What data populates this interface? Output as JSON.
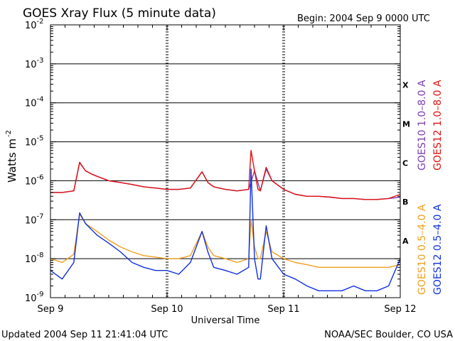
{
  "chart_data": {
    "type": "line",
    "title": "GOES Xray Flux (5 minute data)",
    "begin": "Begin:  2004 Sep 9 0000 UTC",
    "xlabel": "Universal Time",
    "ylabel": "Watts m",
    "ylabel_exp": "-2",
    "x_ticks": [
      "Sep 9",
      "Sep 10",
      "Sep 11",
      "Sep 12"
    ],
    "xlim_days": [
      0,
      3
    ],
    "y_scale": "log",
    "ylim": [
      1e-09,
      0.01
    ],
    "y_tick_exponents": [
      "-2",
      "-3",
      "-4",
      "-5",
      "-6",
      "-7",
      "-8",
      "-9"
    ],
    "flare_classes": [
      {
        "label": "X",
        "flux": 0.0003
      },
      {
        "label": "M",
        "flux": 3e-05
      },
      {
        "label": "C",
        "flux": 3e-06
      },
      {
        "label": "B",
        "flux": 3e-07
      },
      {
        "label": "A",
        "flux": 3e-08
      }
    ],
    "grid": "horizontal at decades, dotted vertical at day boundaries",
    "series": [
      {
        "name": "GOES10 1.0–8.0 A",
        "color": "#7a3fb0",
        "x": [
          0,
          0.1,
          0.2,
          0.25,
          0.3,
          0.35,
          0.4,
          0.5,
          0.6,
          0.7,
          0.8,
          0.9,
          1.0,
          1.1,
          1.2,
          1.3,
          1.35,
          1.4,
          1.5,
          1.6,
          1.7,
          1.75,
          1.8,
          1.85,
          1.9,
          2.0,
          2.1,
          2.2,
          2.3,
          2.4,
          2.5,
          2.6,
          2.7,
          2.8,
          2.9,
          3.0
        ],
        "y": [
          5e-07,
          5e-07,
          5.5e-07,
          2.9e-06,
          1.8e-06,
          1.5e-06,
          1.3e-06,
          1e-06,
          9e-07,
          8e-07,
          7e-07,
          6.5e-07,
          6e-07,
          6e-07,
          6.5e-07,
          1.7e-06,
          9e-07,
          7e-07,
          6e-07,
          5.5e-07,
          6e-07,
          1.8e-06,
          5.5e-07,
          2e-06,
          1e-06,
          6e-07,
          4.5e-07,
          4e-07,
          4e-07,
          3.8e-07,
          3.5e-07,
          3.5e-07,
          3.3e-07,
          3.3e-07,
          3.5e-07,
          3.8e-07
        ]
      },
      {
        "name": "GOES12 1.0–8.0 A",
        "color": "#e01010",
        "x": [
          0,
          0.1,
          0.2,
          0.25,
          0.3,
          0.35,
          0.4,
          0.5,
          0.6,
          0.7,
          0.8,
          0.9,
          1.0,
          1.1,
          1.2,
          1.3,
          1.35,
          1.4,
          1.5,
          1.6,
          1.7,
          1.72,
          1.75,
          1.78,
          1.8,
          1.85,
          1.9,
          2.0,
          2.1,
          2.2,
          2.3,
          2.4,
          2.5,
          2.6,
          2.7,
          2.8,
          2.9,
          3.0
        ],
        "y": [
          5e-07,
          5e-07,
          5.5e-07,
          3e-06,
          1.8e-06,
          1.5e-06,
          1.3e-06,
          1e-06,
          9e-07,
          8e-07,
          7e-07,
          6.5e-07,
          6e-07,
          6e-07,
          6.5e-07,
          1.7e-06,
          9e-07,
          7e-07,
          6e-07,
          5.5e-07,
          6e-07,
          6e-06,
          1.8e-06,
          6e-07,
          5.5e-07,
          2.2e-06,
          1e-06,
          6e-07,
          4.5e-07,
          4e-07,
          4e-07,
          3.8e-07,
          3.5e-07,
          3.5e-07,
          3.3e-07,
          3.3e-07,
          3.5e-07,
          4.5e-07
        ]
      },
      {
        "name": "GOES10 0.5–4.0 A",
        "color": "#f0a020",
        "x": [
          0,
          0.1,
          0.2,
          0.25,
          0.3,
          0.4,
          0.5,
          0.6,
          0.7,
          0.8,
          0.9,
          1.0,
          1.1,
          1.2,
          1.3,
          1.35,
          1.4,
          1.5,
          1.6,
          1.7,
          1.72,
          1.75,
          1.78,
          1.8,
          1.85,
          1.9,
          2.0,
          2.1,
          2.2,
          2.3,
          2.4,
          2.5,
          2.6,
          2.7,
          2.8,
          2.9,
          3.0
        ],
        "y": [
          1e-08,
          8e-09,
          1.3e-08,
          1.4e-07,
          8e-08,
          5e-08,
          3e-08,
          2e-08,
          1.5e-08,
          1.2e-08,
          1.1e-08,
          1e-08,
          1e-08,
          1.2e-08,
          5e-08,
          2e-08,
          1.2e-08,
          1e-08,
          8e-09,
          1e-08,
          1e-07,
          2e-08,
          1e-08,
          1e-08,
          5e-08,
          1.5e-08,
          1e-08,
          8e-09,
          7e-09,
          6e-09,
          6e-09,
          6e-09,
          6e-09,
          6e-09,
          6e-09,
          6e-09,
          7e-09
        ]
      },
      {
        "name": "GOES12 0.5–4.0 A",
        "color": "#1030e0",
        "x": [
          0,
          0.1,
          0.2,
          0.25,
          0.3,
          0.4,
          0.5,
          0.6,
          0.7,
          0.8,
          0.9,
          1.0,
          1.1,
          1.2,
          1.3,
          1.35,
          1.4,
          1.5,
          1.6,
          1.7,
          1.72,
          1.75,
          1.78,
          1.8,
          1.85,
          1.9,
          2.0,
          2.1,
          2.2,
          2.3,
          2.4,
          2.5,
          2.6,
          2.7,
          2.8,
          2.9,
          3.0
        ],
        "y": [
          5e-09,
          3e-09,
          8e-09,
          1.5e-07,
          8e-08,
          4e-08,
          2.5e-08,
          1.5e-08,
          8e-09,
          6e-09,
          5e-09,
          5e-09,
          4e-09,
          8e-09,
          5e-08,
          1.5e-08,
          6e-09,
          5e-09,
          4e-09,
          6e-09,
          2e-06,
          1e-08,
          3e-09,
          3e-09,
          7e-08,
          1e-08,
          4e-09,
          3e-09,
          2e-09,
          1.5e-09,
          1.5e-09,
          1.5e-09,
          2e-09,
          1.5e-09,
          1.5e-09,
          2e-09,
          1e-08
        ]
      }
    ]
  },
  "footer": {
    "updated": "Updated 2004 Sep 11 21:41:04 UTC",
    "credit": "NOAA/SEC Boulder, CO USA"
  }
}
